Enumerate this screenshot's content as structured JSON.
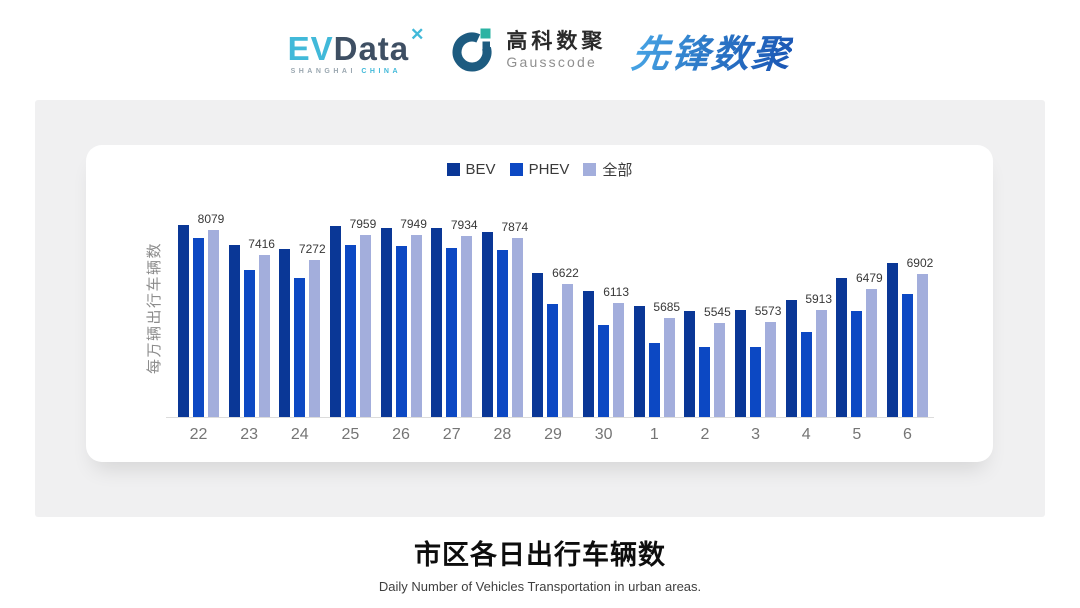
{
  "header": {
    "evdata": {
      "text_ev": "EV",
      "text_data": "Data",
      "mark": "✕",
      "subtext_1": "SHANGHAI",
      "subtext_2": "CHINA"
    },
    "gausscode": {
      "name_cn": "高科数聚",
      "name_en": "Gausscode"
    },
    "pioneer": {
      "name_cn": "先锋数聚"
    }
  },
  "chart_data": {
    "type": "bar",
    "title": "市区各日出行车辆数",
    "subtitle": "Daily Number of Vehicles Transportation in urban areas.",
    "ylabel": "每万辆出行车辆数",
    "xlabel": "",
    "categories": [
      "22",
      "23",
      "24",
      "25",
      "26",
      "27",
      "28",
      "29",
      "30",
      "1",
      "2",
      "3",
      "4",
      "5",
      "6"
    ],
    "series": [
      {
        "name": "BEV",
        "color": "#0a3796",
        "values": [
          8230,
          7690,
          7580,
          8190,
          8140,
          8140,
          8030,
          6920,
          6440,
          6030,
          5880,
          5920,
          6190,
          6770,
          7190
        ],
        "values_estimated_from_pixels": true
      },
      {
        "name": "PHEV",
        "color": "#0c48c3",
        "values": [
          7870,
          6990,
          6780,
          7670,
          7640,
          7600,
          7550,
          6080,
          5500,
          5000,
          4910,
          4900,
          5300,
          5890,
          6340
        ],
        "values_estimated_from_pixels": true
      },
      {
        "name": "全部",
        "color": "#a3aedc",
        "values": [
          8079,
          7416,
          7272,
          7959,
          7949,
          7934,
          7874,
          6622,
          6113,
          5685,
          5545,
          5573,
          5913,
          6479,
          6902
        ],
        "values_estimated_from_pixels": false
      }
    ],
    "data_labels": {
      "shown_for_series": "全部"
    },
    "value_axis": {
      "min": 3000,
      "max": 8440,
      "ticks_shown": false,
      "gridlines": false
    },
    "legend": {
      "position": "top-center",
      "items": [
        "BEV",
        "PHEV",
        "全部"
      ]
    }
  },
  "footer": {
    "title": "市区各日出行车辆数",
    "subtitle": "Daily Number of Vehicles Transportation in urban areas."
  },
  "colors": {
    "bev": "#0a3796",
    "phev": "#0c48c3",
    "all": "#a3aedc",
    "panel_bg": "#f0f0f1",
    "card_bg": "#ffffff",
    "axis_line": "#dcdcdc",
    "tick_text": "#757575",
    "evdata_cyan": "#41b9d9",
    "evdata_dark": "#3e4f63",
    "gauss_blue": "#1d5b80",
    "gauss_teal": "#2bb3a3",
    "pioneer_blue_light": "#4aa9e8",
    "pioneer_blue_dark": "#1a55b4"
  }
}
